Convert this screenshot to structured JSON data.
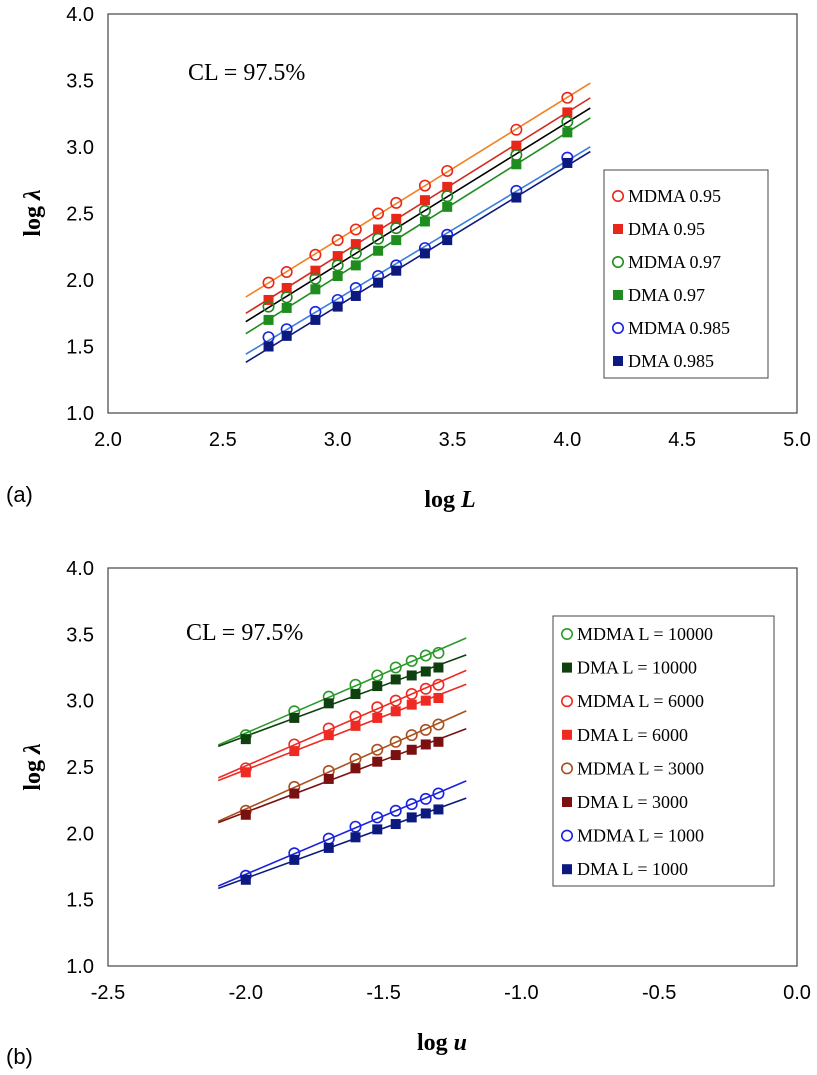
{
  "chart_data": [
    {
      "type": "scatter",
      "panel_label": "(a)",
      "annotation": "CL = 97.5%",
      "xlabel_prefix": "log ",
      "xlabel_var": "L",
      "ylabel_prefix": "log ",
      "ylabel_var": "λ",
      "xlim": [
        2.0,
        5.0
      ],
      "ylim": [
        1.0,
        4.0
      ],
      "xticks": [
        "2.0",
        "2.5",
        "3.0",
        "3.5",
        "4.0",
        "4.5",
        "5.0"
      ],
      "yticks": [
        "1.0",
        "1.5",
        "2.0",
        "2.5",
        "3.0",
        "3.5",
        "4.0"
      ],
      "grid": false,
      "legend_position": "right",
      "x": [
        2.699,
        2.778,
        2.903,
        3.0,
        3.079,
        3.176,
        3.255,
        3.38,
        3.477,
        3.778,
        4.0
      ],
      "fit_range": [
        2.6,
        4.1
      ],
      "series": [
        {
          "name": "MDMA 0.95",
          "marker": "circle",
          "color": "#e8261a",
          "line_color": "#f28020",
          "values": [
            1.98,
            2.06,
            2.19,
            2.3,
            2.38,
            2.5,
            2.58,
            2.71,
            2.82,
            3.13,
            3.37
          ]
        },
        {
          "name": "DMA 0.95",
          "marker": "square",
          "color": "#e8261a",
          "line_color": "#d42a1e",
          "values": [
            1.85,
            1.94,
            2.07,
            2.18,
            2.27,
            2.38,
            2.46,
            2.6,
            2.7,
            3.01,
            3.26
          ]
        },
        {
          "name": "MDMA 0.97",
          "marker": "circle",
          "color": "#1e8c1e",
          "line_color": "#000000",
          "values": [
            1.8,
            1.87,
            2.01,
            2.11,
            2.2,
            2.31,
            2.39,
            2.52,
            2.63,
            2.94,
            3.19
          ]
        },
        {
          "name": "DMA 0.97",
          "marker": "square",
          "color": "#1e8c1e",
          "line_color": "#1e8c1e",
          "values": [
            1.7,
            1.79,
            1.93,
            2.03,
            2.11,
            2.22,
            2.3,
            2.44,
            2.55,
            2.87,
            3.11
          ]
        },
        {
          "name": "MDMA 0.985",
          "marker": "circle",
          "color": "#1a22e0",
          "line_color": "#3a7ee0",
          "values": [
            1.57,
            1.63,
            1.76,
            1.85,
            1.94,
            2.03,
            2.11,
            2.24,
            2.34,
            2.67,
            2.92
          ]
        },
        {
          "name": "DMA 0.985",
          "marker": "square",
          "color": "#0c1a80",
          "line_color": "#0c1a80",
          "values": [
            1.5,
            1.58,
            1.7,
            1.8,
            1.88,
            1.98,
            2.07,
            2.2,
            2.3,
            2.62,
            2.88
          ]
        }
      ]
    },
    {
      "type": "scatter",
      "panel_label": "(b)",
      "annotation": "CL = 97.5%",
      "xlabel_prefix": "log ",
      "xlabel_var": "u",
      "ylabel_prefix": "log ",
      "ylabel_var": "λ",
      "xlim": [
        -2.5,
        0.0
      ],
      "ylim": [
        1.0,
        4.0
      ],
      "xticks": [
        "-2.5",
        "-2.0",
        "-1.5",
        "-1.0",
        "-0.5",
        "0.0"
      ],
      "yticks": [
        "1.0",
        "1.5",
        "2.0",
        "2.5",
        "3.0",
        "3.5",
        "4.0"
      ],
      "grid": false,
      "legend_position": "right",
      "x": [
        -2.0,
        -1.824,
        -1.699,
        -1.602,
        -1.523,
        -1.456,
        -1.398,
        -1.347,
        -1.301
      ],
      "fit_range": [
        -2.1,
        -1.2
      ],
      "series": [
        {
          "name": "MDMA L = 10000",
          "marker": "circle",
          "color": "#2a9a2a",
          "line_color": "#2a9a2a",
          "values": [
            2.74,
            2.92,
            3.03,
            3.12,
            3.19,
            3.25,
            3.3,
            3.34,
            3.36
          ]
        },
        {
          "name": "DMA L = 10000",
          "marker": "square",
          "color": "#0f4010",
          "line_color": "#0f4010",
          "values": [
            2.71,
            2.87,
            2.98,
            3.05,
            3.11,
            3.16,
            3.19,
            3.22,
            3.25
          ]
        },
        {
          "name": "MDMA L = 6000",
          "marker": "circle",
          "color": "#ee2a22",
          "line_color": "#ee2a22",
          "values": [
            2.49,
            2.67,
            2.79,
            2.88,
            2.95,
            3.0,
            3.05,
            3.09,
            3.12
          ]
        },
        {
          "name": "DMA L = 6000",
          "marker": "square",
          "color": "#ee2a22",
          "line_color": "#ee2a22",
          "values": [
            2.46,
            2.62,
            2.74,
            2.81,
            2.87,
            2.92,
            2.97,
            3.0,
            3.02
          ]
        },
        {
          "name": "MDMA L = 3000",
          "marker": "circle",
          "color": "#a85020",
          "line_color": "#a85020",
          "values": [
            2.17,
            2.35,
            2.47,
            2.56,
            2.63,
            2.69,
            2.74,
            2.78,
            2.82
          ]
        },
        {
          "name": "DMA L = 3000",
          "marker": "square",
          "color": "#7a1010",
          "line_color": "#7a1010",
          "values": [
            2.14,
            2.3,
            2.41,
            2.49,
            2.54,
            2.59,
            2.63,
            2.67,
            2.69
          ]
        },
        {
          "name": "MDMA L = 1000",
          "marker": "circle",
          "color": "#1a22e0",
          "line_color": "#1a22e0",
          "values": [
            1.68,
            1.85,
            1.96,
            2.05,
            2.12,
            2.17,
            2.22,
            2.26,
            2.3
          ]
        },
        {
          "name": "DMA L = 1000",
          "marker": "square",
          "color": "#0c1a80",
          "line_color": "#0c1a80",
          "values": [
            1.65,
            1.8,
            1.89,
            1.97,
            2.03,
            2.07,
            2.12,
            2.15,
            2.18
          ]
        }
      ]
    }
  ]
}
